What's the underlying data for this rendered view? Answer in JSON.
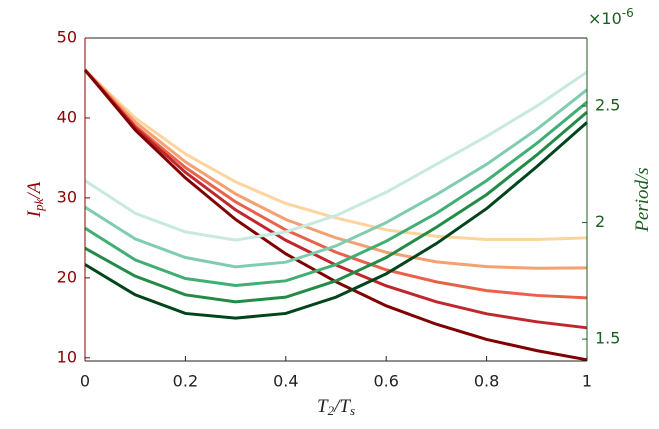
{
  "chart_data": {
    "type": "line",
    "xlabel": [
      {
        "text": "T"
      },
      {
        "text": "2",
        "sub": true
      },
      {
        "text": "/T"
      },
      {
        "text": "s",
        "sub": true
      }
    ],
    "ylabel": [
      {
        "text": "I"
      },
      {
        "text": "pk",
        "sub": true
      },
      {
        "text": "/A"
      }
    ],
    "y2label": [
      {
        "text": "Period"
      },
      {
        "text": "/s"
      }
    ],
    "y2_exponent": {
      "base": "×10",
      "sup": "-6"
    },
    "x": [
      0,
      0.1,
      0.2,
      0.3,
      0.4,
      0.5,
      0.6,
      0.7,
      0.8,
      0.9,
      1
    ],
    "xlim": [
      0,
      1
    ],
    "xticks": [
      0,
      0.2,
      0.4,
      0.6,
      0.8,
      1
    ],
    "ylim": [
      9.6,
      50
    ],
    "yticks": [
      10,
      20,
      30,
      40,
      50
    ],
    "y2lim": [
      1.406,
      2.792
    ],
    "y2ticks": [
      1.5,
      2,
      2.5
    ],
    "y_color": "#8b0000",
    "y2_color": "#1b5e20",
    "series": [
      {
        "color": "#fdd49e",
        "values": [
          46,
          40,
          35.5,
          32,
          29.3,
          27.5,
          26,
          25.2,
          24.8,
          24.8,
          25
        ]
      },
      {
        "color": "#f5a070",
        "values": [
          46,
          39.5,
          34.5,
          30.5,
          27.3,
          25,
          23.2,
          22,
          21.4,
          21.2,
          21.25
        ]
      },
      {
        "color": "#e8624a",
        "values": [
          46,
          39,
          33.8,
          29.5,
          26,
          23.2,
          21,
          19.5,
          18.4,
          17.8,
          17.5
        ]
      },
      {
        "color": "#c0272d",
        "values": [
          46,
          38.8,
          33.2,
          28.5,
          24.7,
          21.6,
          19,
          17,
          15.5,
          14.5,
          13.75
        ]
      },
      {
        "color": "#800000",
        "values": [
          46,
          38.5,
          32.5,
          27.3,
          23,
          19.5,
          16.5,
          14.2,
          12.3,
          10.9,
          9.75
        ]
      },
      {
        "color": "#c7e9e0",
        "axis": "y2",
        "values": [
          2.18,
          2.04,
          1.96,
          1.925,
          1.96,
          2.03,
          2.13,
          2.25,
          2.37,
          2.5,
          2.646
        ]
      },
      {
        "color": "#7fcdae",
        "axis": "y2",
        "values": [
          2.066,
          1.93,
          1.85,
          1.81,
          1.83,
          1.9,
          2.0,
          2.12,
          2.25,
          2.4,
          2.57
        ]
      },
      {
        "color": "#41ae76",
        "axis": "y2",
        "values": [
          1.976,
          1.84,
          1.76,
          1.73,
          1.75,
          1.82,
          1.92,
          2.04,
          2.18,
          2.34,
          2.517
        ]
      },
      {
        "color": "#238b45",
        "axis": "y2",
        "values": [
          1.89,
          1.77,
          1.69,
          1.66,
          1.68,
          1.75,
          1.85,
          1.98,
          2.12,
          2.29,
          2.474
        ]
      },
      {
        "color": "#00441b",
        "axis": "y2",
        "values": [
          1.82,
          1.69,
          1.61,
          1.59,
          1.61,
          1.68,
          1.78,
          1.91,
          2.06,
          2.24,
          2.43
        ]
      }
    ]
  }
}
